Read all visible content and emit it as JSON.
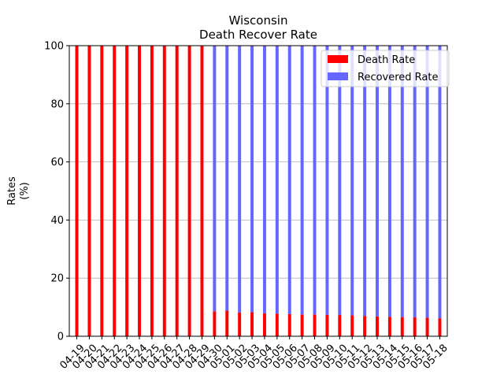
{
  "chart_data": {
    "type": "bar",
    "stacked": true,
    "title": "Wisconsin",
    "subtitle": "Death Recover Rate",
    "xlabel": "",
    "ylabel": "Rates\n(%)",
    "ylim": [
      0,
      100
    ],
    "yticks": [
      0,
      20,
      40,
      60,
      80,
      100
    ],
    "grid": "y",
    "legend_position": "top-right",
    "categories": [
      "04-19",
      "04-20",
      "04-21",
      "04-22",
      "04-23",
      "04-24",
      "04-25",
      "04-26",
      "04-27",
      "04-28",
      "04-29",
      "04-30",
      "05-01",
      "05-02",
      "05-03",
      "05-04",
      "05-05",
      "05-06",
      "05-07",
      "05-08",
      "05-09",
      "05-10",
      "05-11",
      "05-12",
      "05-13",
      "05-14",
      "05-15",
      "05-16",
      "05-17",
      "05-18"
    ],
    "series": [
      {
        "name": "Death Rate",
        "color": "#ff0000",
        "values": [
          100,
          100,
          100,
          100,
          100,
          100,
          100,
          100,
          100,
          100,
          100,
          8.6,
          8.8,
          8.2,
          8.3,
          7.9,
          7.8,
          7.6,
          7.5,
          7.5,
          7.4,
          7.3,
          7.2,
          7.0,
          6.8,
          6.7,
          6.6,
          6.5,
          6.4,
          6.2
        ]
      },
      {
        "name": "Recovered Rate",
        "color": "#6666ff",
        "values": [
          0,
          0,
          0,
          0,
          0,
          0,
          0,
          0,
          0,
          0,
          0,
          91.4,
          91.2,
          91.8,
          91.7,
          92.1,
          92.2,
          92.4,
          92.5,
          92.5,
          92.6,
          92.7,
          92.8,
          93.0,
          93.2,
          93.3,
          93.4,
          93.5,
          93.6,
          93.8
        ]
      }
    ]
  }
}
